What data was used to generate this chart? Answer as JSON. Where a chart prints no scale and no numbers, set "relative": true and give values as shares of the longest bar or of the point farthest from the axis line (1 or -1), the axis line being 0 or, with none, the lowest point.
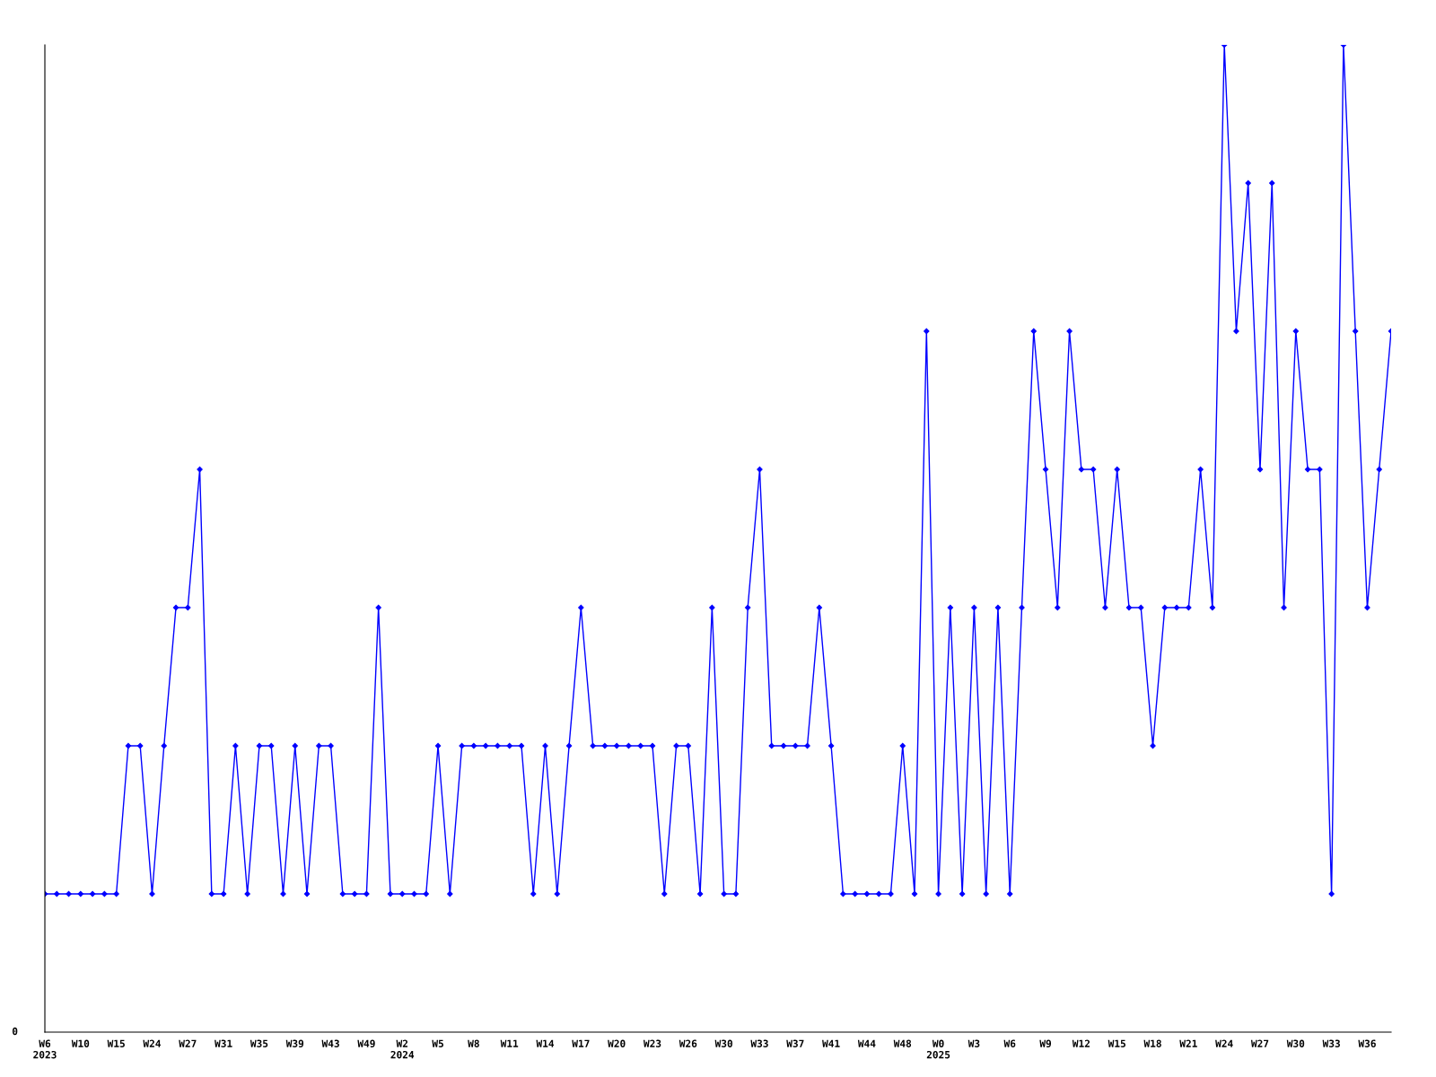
{
  "chart_data": {
    "type": "line",
    "relative": true,
    "marker": "diamond",
    "grid": false,
    "annotations": [
      "0"
    ],
    "categories": [
      "W6\n2023",
      null,
      null,
      "W10",
      null,
      null,
      "W15",
      null,
      null,
      "W24",
      null,
      null,
      "W27",
      null,
      null,
      "W31",
      null,
      null,
      "W35",
      null,
      null,
      "W39",
      null,
      null,
      "W43",
      null,
      null,
      "W49",
      null,
      null,
      "W2\n2024",
      null,
      null,
      "W5",
      null,
      null,
      "W8",
      null,
      null,
      "W11",
      null,
      null,
      "W14",
      null,
      null,
      "W17",
      null,
      null,
      "W20",
      null,
      null,
      "W23",
      null,
      null,
      "W26",
      null,
      null,
      "W30",
      null,
      null,
      "W33",
      null,
      null,
      "W37",
      null,
      null,
      "W41",
      null,
      null,
      "W44",
      null,
      null,
      "W48",
      null,
      null,
      "W0\n2025",
      null,
      null,
      "W3",
      null,
      null,
      "W6",
      null,
      null,
      "W9",
      null,
      null,
      "W12",
      null,
      null,
      "W15",
      null,
      null,
      "W18",
      null,
      null,
      "W21",
      null,
      null,
      "W24",
      null,
      null,
      "W27",
      null,
      null,
      "W30",
      null,
      null,
      "W33",
      null,
      null,
      "W36",
      null,
      null
    ],
    "series": [
      {
        "color": "#0000ff",
        "values": [
          0.14,
          0.14,
          0.14,
          0.14,
          0.14,
          0.14,
          0.14,
          0.29,
          0.29,
          0.14,
          0.29,
          0.43,
          0.43,
          0.57,
          0.14,
          0.14,
          0.29,
          0.14,
          0.29,
          0.29,
          0.14,
          0.29,
          0.14,
          0.29,
          0.29,
          0.14,
          0.14,
          0.14,
          0.43,
          0.14,
          0.14,
          0.14,
          0.14,
          0.29,
          0.14,
          0.29,
          0.29,
          0.29,
          0.29,
          0.29,
          0.29,
          0.14,
          0.29,
          0.14,
          0.29,
          0.43,
          0.29,
          0.29,
          0.29,
          0.29,
          0.29,
          0.29,
          0.14,
          0.29,
          0.29,
          0.14,
          0.43,
          0.14,
          0.14,
          0.43,
          0.57,
          0.29,
          0.29,
          0.29,
          0.29,
          0.43,
          0.29,
          0.14,
          0.14,
          0.14,
          0.14,
          0.14,
          0.29,
          0.14,
          0.71,
          0.14,
          0.43,
          0.14,
          0.43,
          0.14,
          0.43,
          0.14,
          0.43,
          0.71,
          0.57,
          0.43,
          0.71,
          0.57,
          0.57,
          0.43,
          0.57,
          0.43,
          0.43,
          0.29,
          0.43,
          0.43,
          0.43,
          0.57,
          0.43,
          1,
          0.71,
          0.86,
          0.57,
          0.86,
          0.43,
          0.71,
          0.57,
          0.57,
          0.14,
          1,
          0.71,
          0.43,
          0.57,
          0.71
        ]
      }
    ]
  }
}
